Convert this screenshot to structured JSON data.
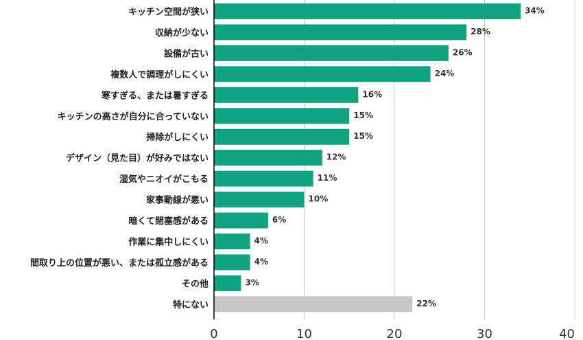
{
  "chart_data": {
    "type": "bar",
    "orientation": "horizontal",
    "title": "",
    "xlabel": "",
    "ylabel": "",
    "categories": [
      "キッチン空間が狭い",
      "収納が少ない",
      "設備が古い",
      "複数人で調理がしにくい",
      "寒すぎる、または暑すぎる",
      "キッチンの高さが自分に合っていない",
      "掃除がしにくい",
      "デザイン（見た目）が好みではない",
      "湿気やニオイがこもる",
      "家事動線が悪い",
      "暗くて閉塞感がある",
      "作業に集中しにくい",
      "間取り上の位置が悪い、または孤立感がある",
      "その他",
      "特にない"
    ],
    "values": [
      34,
      28,
      26,
      24,
      16,
      15,
      15,
      12,
      11,
      10,
      6,
      4,
      4,
      3,
      22
    ],
    "value_labels": [
      "34%",
      "28%",
      "26%",
      "24%",
      "16%",
      "15%",
      "15%",
      "12%",
      "11%",
      "10%",
      "6%",
      "4%",
      "4%",
      "3%",
      "22%"
    ],
    "bar_colors": [
      "#10a37f",
      "#10a37f",
      "#10a37f",
      "#10a37f",
      "#10a37f",
      "#10a37f",
      "#10a37f",
      "#10a37f",
      "#10a37f",
      "#10a37f",
      "#10a37f",
      "#10a37f",
      "#10a37f",
      "#10a37f",
      "#c8c8c8"
    ],
    "xlim": [
      0,
      40
    ],
    "xticks": [
      0,
      10,
      20,
      30,
      40
    ],
    "grid": true,
    "legend": "none"
  }
}
